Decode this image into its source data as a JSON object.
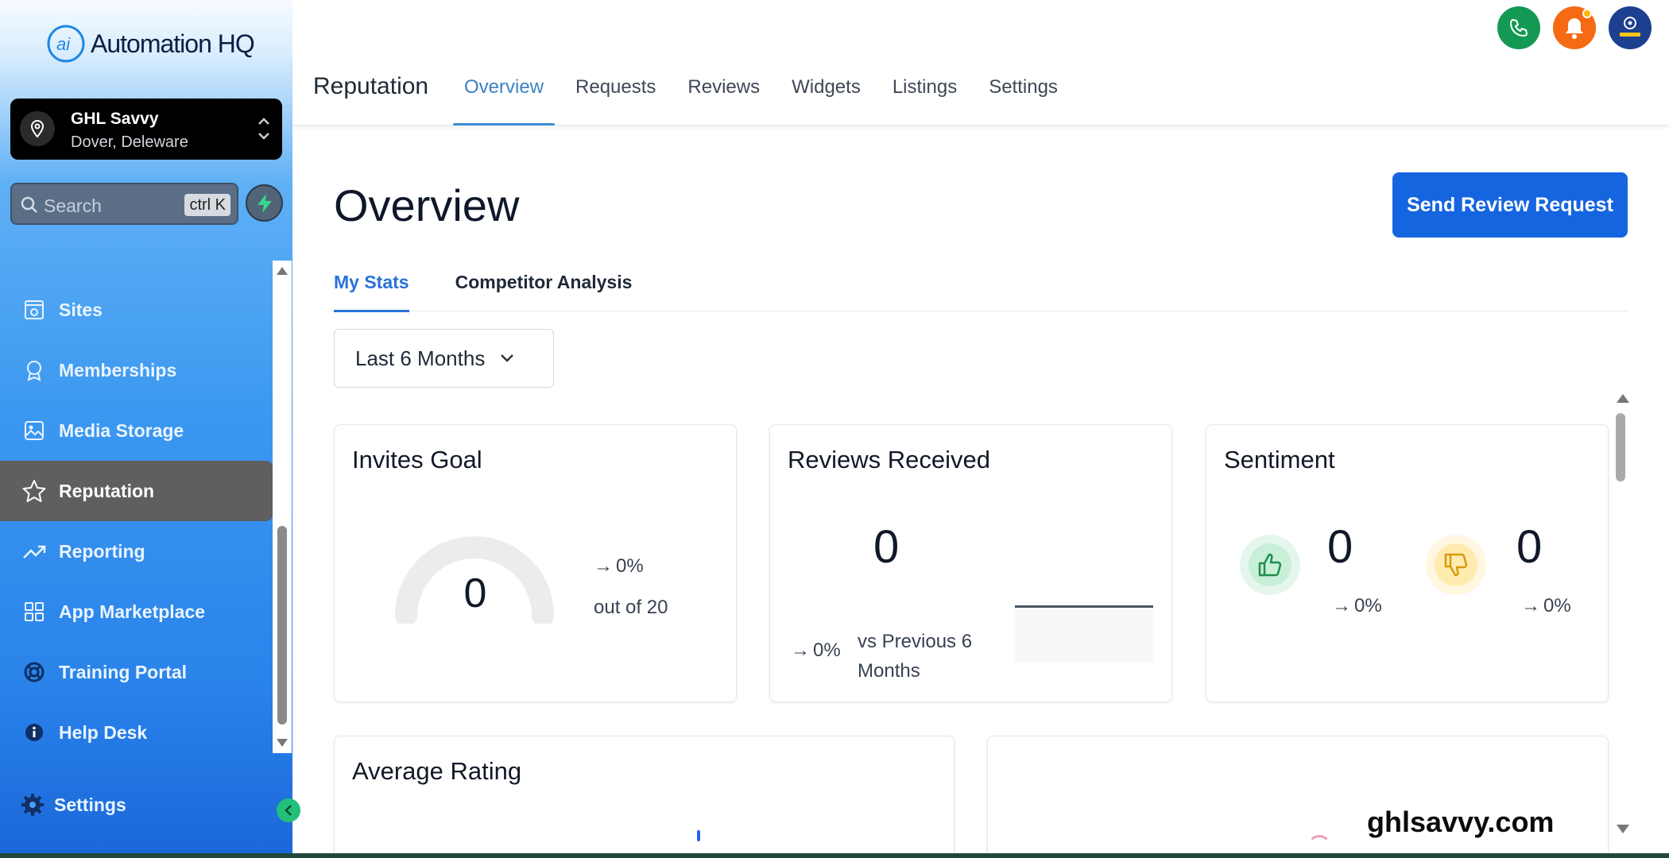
{
  "brand": {
    "name": "Automation HQ"
  },
  "location": {
    "name": "GHL Savvy",
    "address": "Dover, Deleware"
  },
  "search": {
    "placeholder": "Search",
    "shortcut": "ctrl K"
  },
  "sidebar": {
    "items": [
      {
        "label": "Sites",
        "icon": "sites-icon"
      },
      {
        "label": "Memberships",
        "icon": "badge-icon"
      },
      {
        "label": "Media Storage",
        "icon": "image-icon"
      },
      {
        "label": "Reputation",
        "icon": "star-icon",
        "active": true
      },
      {
        "label": "Reporting",
        "icon": "trending-icon"
      },
      {
        "label": "App Marketplace",
        "icon": "grid-icon"
      },
      {
        "label": "Training Portal",
        "icon": "lifebuoy-icon"
      },
      {
        "label": "Help Desk",
        "icon": "info-icon"
      }
    ],
    "settings_label": "Settings"
  },
  "header": {
    "title": "Reputation",
    "tabs": [
      "Overview",
      "Requests",
      "Reviews",
      "Widgets",
      "Listings",
      "Settings"
    ],
    "active_tab": "Overview"
  },
  "main": {
    "title": "Overview",
    "send_button": "Send Review Request",
    "subtabs": [
      "My Stats",
      "Competitor Analysis"
    ],
    "date_range": "Last 6 Months"
  },
  "cards": {
    "invites": {
      "title": "Invites Goal",
      "value": "0",
      "change": "0%",
      "goal_text": "out of 20"
    },
    "reviews": {
      "title": "Reviews Received",
      "value": "0",
      "change": "0%",
      "comparison": "vs Previous 6 Months"
    },
    "sentiment": {
      "title": "Sentiment",
      "positive": "0",
      "positive_change": "0%",
      "negative": "0",
      "negative_change": "0%"
    },
    "avg_rating": {
      "title": "Average Rating"
    }
  },
  "watermark": "ghlsavvy.com",
  "colors": {
    "primary": "#1665e0",
    "active_tab": "#3b82c4",
    "sidebar_active": "#5f5f5f"
  }
}
